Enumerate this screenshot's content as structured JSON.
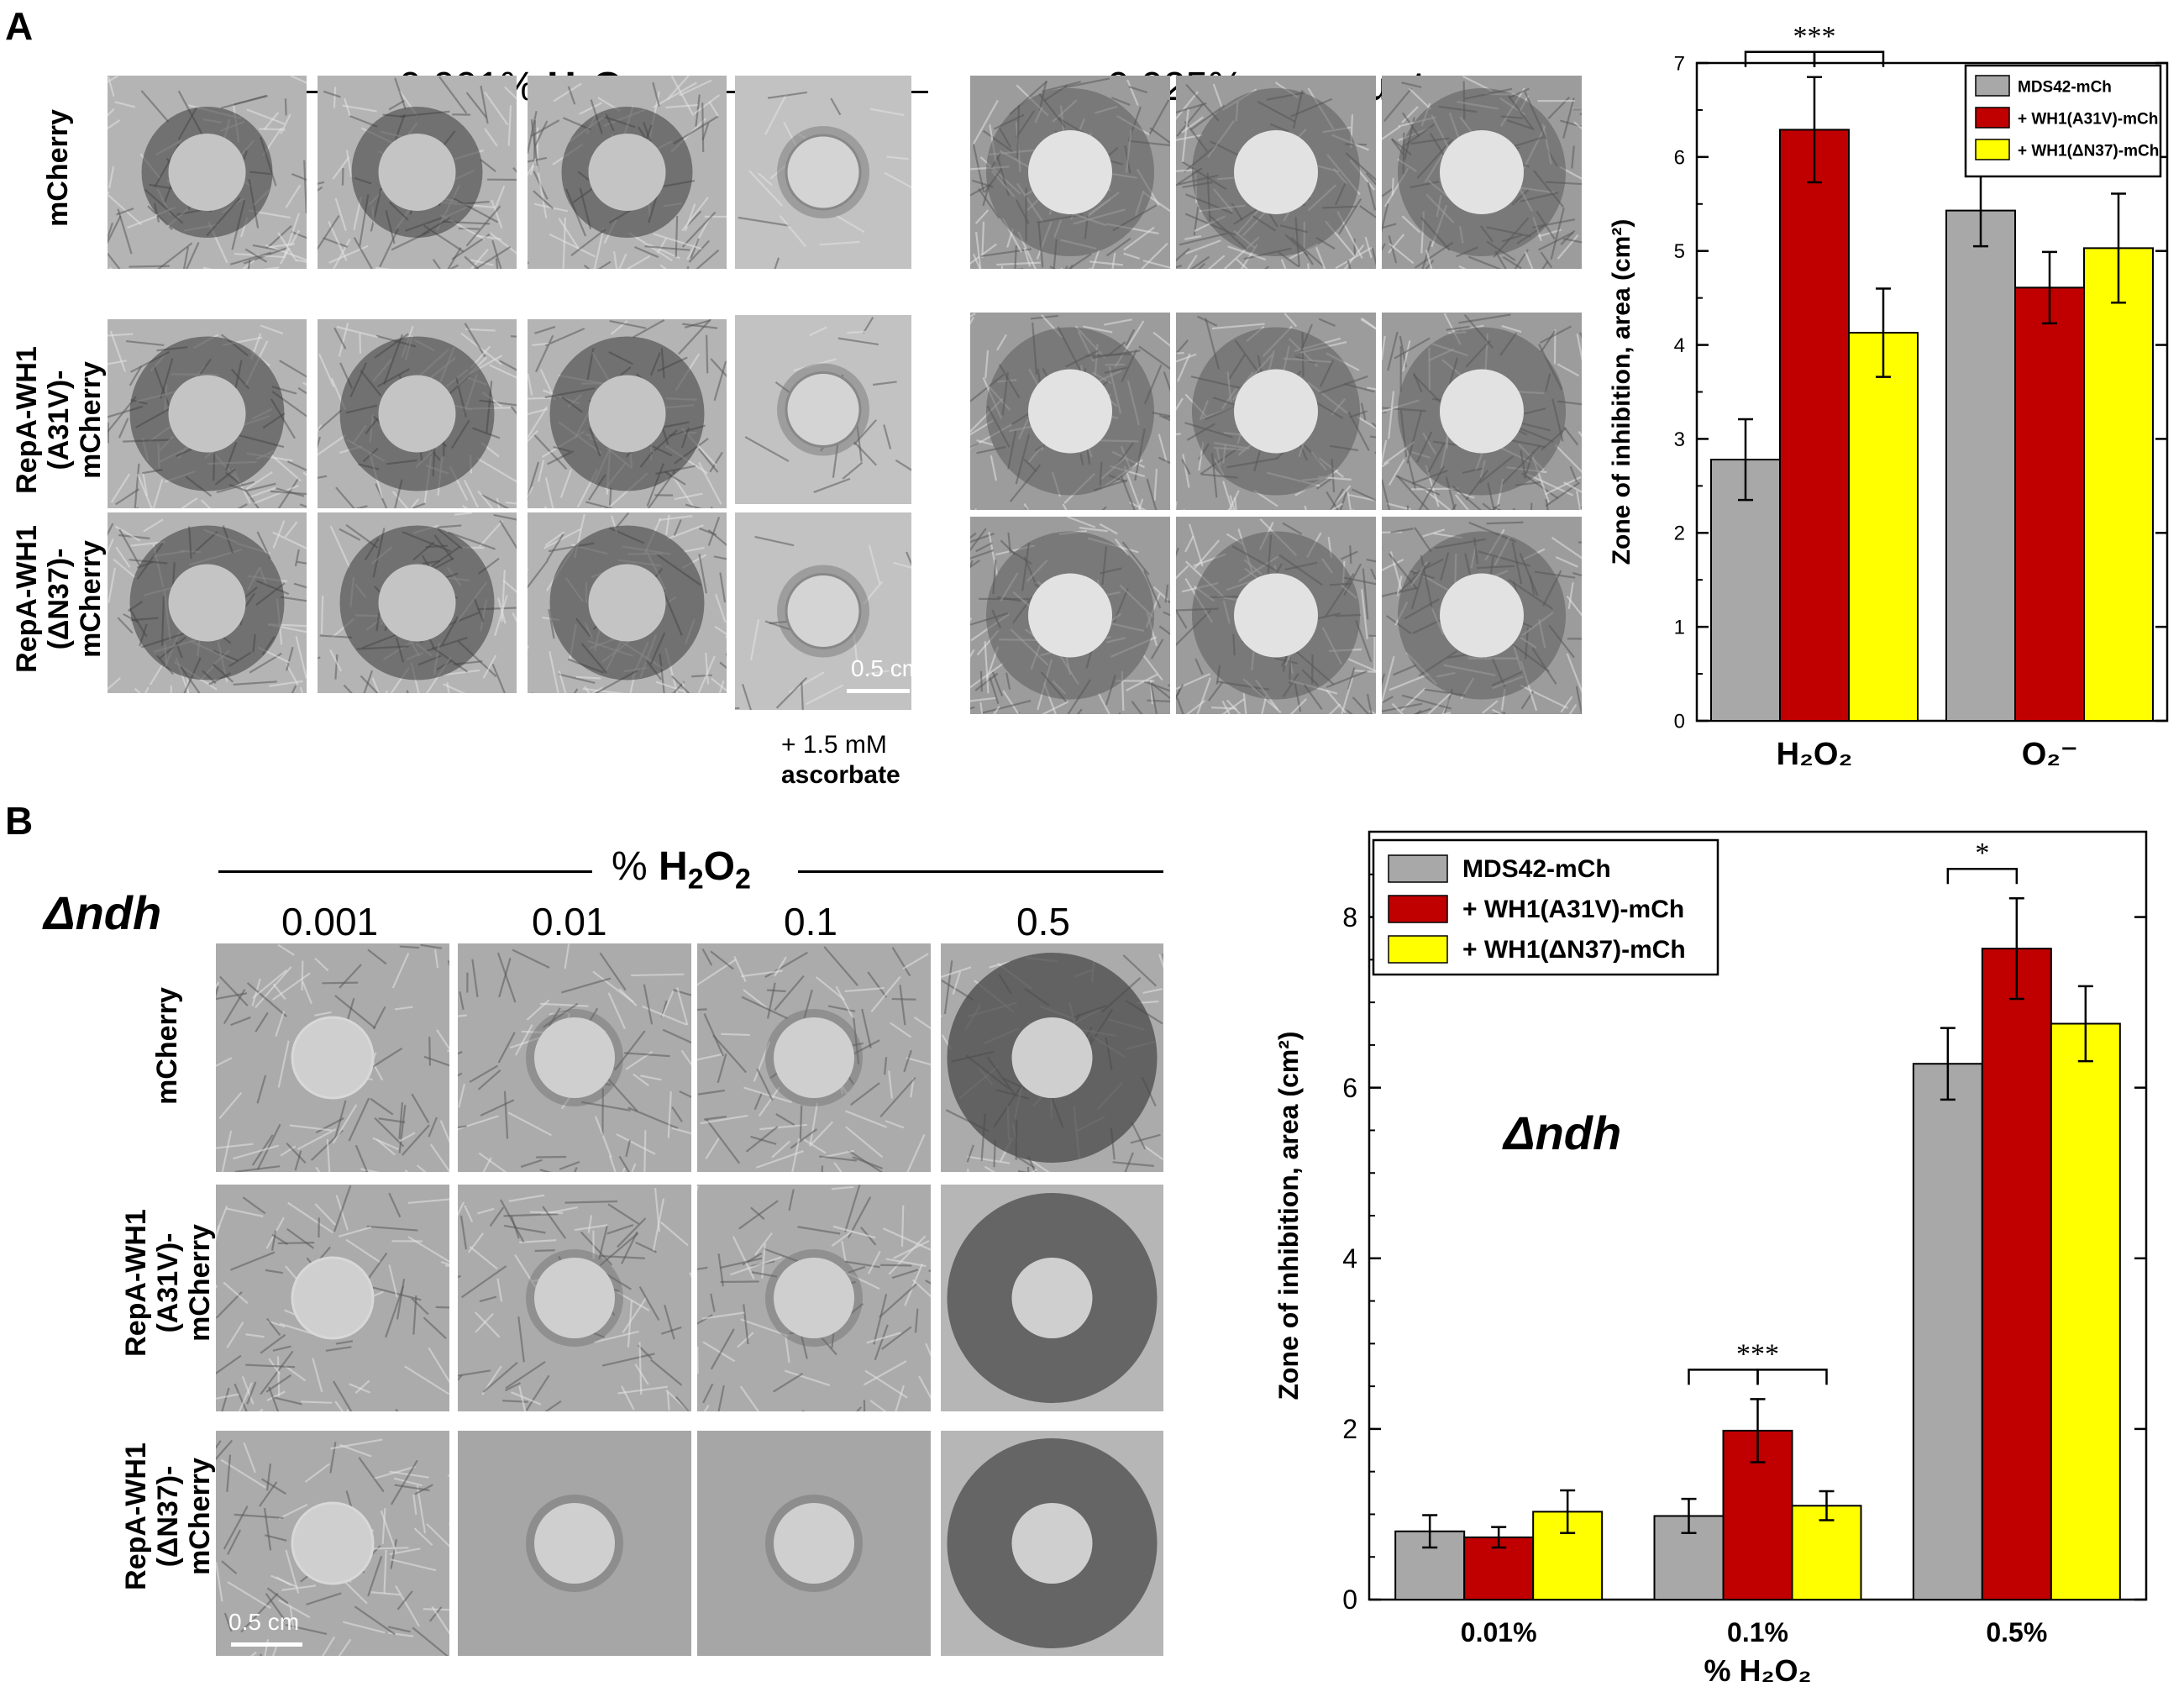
{
  "panel_a": {
    "letter": "A",
    "h2o2_header": {
      "prefix": "0.001% ",
      "chem": "H",
      "sub1": "2",
      "mid": "O",
      "sub2": "2"
    },
    "paraquat_header": {
      "prefix": "0.025% ",
      "bold": "paraquat"
    },
    "rows": [
      {
        "lines": [
          "mCherry"
        ]
      },
      {
        "lines": [
          "RepA-WH1",
          "(A31V)-",
          "mCherry"
        ]
      },
      {
        "lines": [
          "RepA-WH1",
          "(ΔN37)-",
          "mCherry"
        ]
      }
    ],
    "scale_label": "0.5 cm",
    "ascorbate_line1": "+ 1.5 mM",
    "ascorbate_line2": "ascorbate"
  },
  "panel_b": {
    "letter": "B",
    "header": {
      "prefix": "% ",
      "chem": "H",
      "sub1": "2",
      "mid": "O",
      "sub2": "2"
    },
    "strain": "Δndh",
    "columns": [
      "0.001",
      "0.01",
      "0.1",
      "0.5"
    ],
    "rows": [
      {
        "lines": [
          "mCherry"
        ]
      },
      {
        "lines": [
          "RepA-WH1",
          "(A31V)-",
          "mCherry"
        ]
      },
      {
        "lines": [
          "RepA-WH1",
          "(ΔN37)-",
          "mCherry"
        ]
      }
    ],
    "scale_label": "0.5 cm"
  },
  "colors": {
    "gray": "#a8a8a8",
    "red": "#c00000",
    "yellow": "#ffff00"
  },
  "chart_data": [
    {
      "type": "bar",
      "ylabel": "Zone of inhibition, area (cm²)",
      "ylim": [
        0,
        7
      ],
      "yticks": [
        0,
        1,
        2,
        3,
        4,
        5,
        6,
        7
      ],
      "categories": [
        "H₂O₂",
        "O₂⁻"
      ],
      "series": [
        {
          "name": "MDS42-mCh",
          "color": "#a8a8a8",
          "values": [
            2.78,
            5.43
          ],
          "errors": [
            0.43,
            0.38
          ]
        },
        {
          "name": "+ WH1(A31V)-mCh",
          "color": "#c00000",
          "values": [
            6.29,
            4.61
          ],
          "errors": [
            0.56,
            0.38
          ]
        },
        {
          "name": "+ WH1(ΔN37)-mCh",
          "color": "#ffff00",
          "values": [
            4.13,
            5.03
          ],
          "errors": [
            0.47,
            0.58
          ]
        }
      ],
      "legend": "top-right",
      "significance": [
        {
          "label": "***",
          "category": 0,
          "pairs": [
            [
              0,
              1
            ],
            [
              1,
              2
            ]
          ]
        },
        {
          "label": "**",
          "category": 1,
          "pairs": [
            [
              0,
              1
            ]
          ]
        }
      ]
    },
    {
      "type": "bar",
      "xlabel": "% H₂O₂",
      "ylabel": "Zone of inhibition, area (cm²)",
      "ylim": [
        0,
        9
      ],
      "yticks": [
        0,
        2,
        4,
        6,
        8
      ],
      "categories": [
        "0.01%",
        "0.1%",
        "0.5%"
      ],
      "series": [
        {
          "name": "MDS42-mCh",
          "color": "#a8a8a8",
          "values": [
            0.8,
            0.98,
            6.28
          ],
          "errors": [
            0.19,
            0.2,
            0.42
          ]
        },
        {
          "name": "+ WH1(A31V)-mCh",
          "color": "#c00000",
          "values": [
            0.73,
            1.98,
            7.63
          ],
          "errors": [
            0.12,
            0.37,
            0.59
          ]
        },
        {
          "name": "+ WH1(ΔN37)-mCh",
          "color": "#ffff00",
          "values": [
            1.03,
            1.1,
            6.75
          ],
          "errors": [
            0.25,
            0.17,
            0.44
          ]
        }
      ],
      "legend": "top-left",
      "annotation": "Δndh",
      "significance": [
        {
          "label": "***",
          "category": 1,
          "pairs": [
            [
              0,
              1
            ],
            [
              1,
              2
            ]
          ]
        },
        {
          "label": "*",
          "category": 2,
          "pairs": [
            [
              0,
              1
            ]
          ]
        }
      ]
    }
  ]
}
